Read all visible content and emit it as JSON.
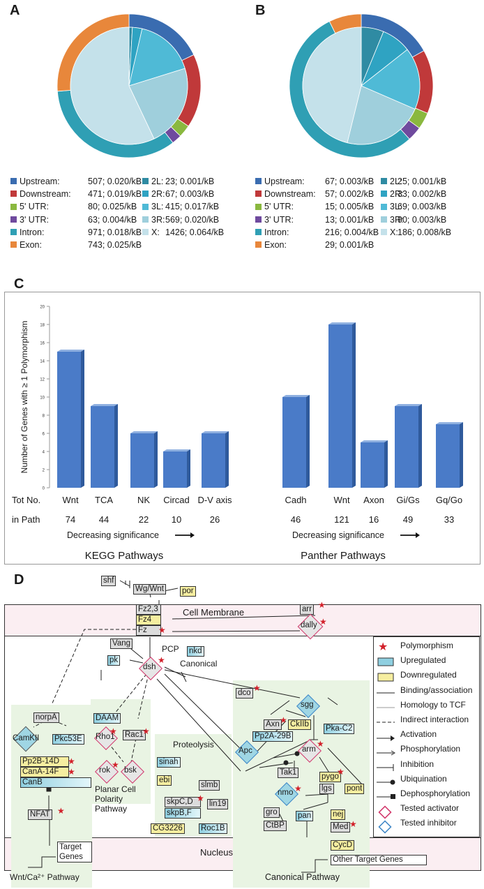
{
  "panels": {
    "a": "A",
    "b": "B",
    "c": "C",
    "d": "D"
  },
  "colors": {
    "Upstream": "#3a6cb0",
    "Downstream": "#c0393a",
    "5' UTR": "#8ab83f",
    "3' UTR": "#6f4a9e",
    "Intron": "#2f9fb4",
    "Exon": "#e8873b",
    "2L": "#2f8ba3",
    "2R": "#2fa3c2",
    "3L": "#4fbad6",
    "3R": "#9fcfdc",
    "X": "#c4e1ea",
    "bar": "#4a7bc8",
    "bar_dark": "#2f5a9c"
  },
  "chart_data": [
    {
      "type": "pie",
      "panel": "A",
      "outer_ring": [
        {
          "name": "Upstream",
          "count": 507,
          "density": "0.020/kB"
        },
        {
          "name": "Downstream",
          "count": 471,
          "density": "0.019/kB"
        },
        {
          "name": "5' UTR",
          "count": 80,
          "density": "0.025/kB"
        },
        {
          "name": "3' UTR",
          "count": 63,
          "density": "0.004/kB"
        },
        {
          "name": "Intron",
          "count": 971,
          "density": "0.018/kB"
        },
        {
          "name": "Exon",
          "count": 743,
          "density": "0.025/kB"
        }
      ],
      "inner_pie": [
        {
          "name": "2L",
          "count": 23,
          "density": "0.001/kB"
        },
        {
          "name": "2R",
          "count": 67,
          "density": "0.003/kB"
        },
        {
          "name": "3L",
          "count": 415,
          "density": "0.017/kB"
        },
        {
          "name": "3R",
          "count": 569,
          "density": "0.020/kB"
        },
        {
          "name": "X",
          "count": 1426,
          "density": "0.064/kB"
        }
      ],
      "legend_left": [
        {
          "name": "Upstream",
          "label": "Upstream:",
          "value": "507; 0.020/kB"
        },
        {
          "name": "Downstream",
          "label": "Downstream:",
          "value": "471; 0.019/kB"
        },
        {
          "name": "5' UTR",
          "label": "5' UTR:",
          "value": "80; 0.025/kB"
        },
        {
          "name": "3' UTR",
          "label": "3' UTR:",
          "value": "63; 0.004/kB"
        },
        {
          "name": "Intron",
          "label": "Intron:",
          "value": "971; 0.018/kB"
        },
        {
          "name": "Exon",
          "label": "Exon:",
          "value": "743; 0.025/kB"
        }
      ],
      "legend_right": [
        {
          "name": "2L",
          "label": "2L:",
          "value": "23; 0.001/kB"
        },
        {
          "name": "2R",
          "label": "2R:",
          "value": "67; 0.003/kB"
        },
        {
          "name": "3L",
          "label": "3L:",
          "value": "415; 0.017/kB"
        },
        {
          "name": "3R",
          "label": "3R:",
          "value": "569; 0.020/kB"
        },
        {
          "name": "X",
          "label": "X:",
          "value": "1426; 0.064/kB"
        }
      ]
    },
    {
      "type": "pie",
      "panel": "B",
      "outer_ring": [
        {
          "name": "Upstream",
          "count": 67,
          "density": "0.003/kB"
        },
        {
          "name": "Downstream",
          "count": 57,
          "density": "0.002/kB"
        },
        {
          "name": "5' UTR",
          "count": 15,
          "density": "0.005/kB"
        },
        {
          "name": "3' UTR",
          "count": 13,
          "density": "0.001/kB"
        },
        {
          "name": "Intron",
          "count": 216,
          "density": "0.004/kB"
        },
        {
          "name": "Exon",
          "count": 29,
          "density": "0.001/kB"
        }
      ],
      "inner_pie": [
        {
          "name": "2L",
          "count": 25,
          "density": "0.001/kB"
        },
        {
          "name": "2R",
          "count": 33,
          "density": "0.002/kB"
        },
        {
          "name": "3L",
          "count": 69,
          "density": "0.003/kB"
        },
        {
          "name": "3R",
          "count": 90,
          "density": "0.003/kB"
        },
        {
          "name": "X",
          "count": 186,
          "density": "0.008/kB"
        }
      ],
      "legend_left": [
        {
          "name": "Upstream",
          "label": "Upstream:",
          "value": "67; 0.003/kB"
        },
        {
          "name": "Downstream",
          "label": "Downstream:",
          "value": "57; 0.002/kB"
        },
        {
          "name": "5' UTR",
          "label": "5' UTR:",
          "value": "15; 0.005/kB"
        },
        {
          "name": "3' UTR",
          "label": "3' UTR:",
          "value": "13; 0.001/kB"
        },
        {
          "name": "Intron",
          "label": "Intron:",
          "value": "216; 0.004/kB"
        },
        {
          "name": "Exon",
          "label": "Exon:",
          "value": "29; 0.001/kB"
        }
      ],
      "legend_right": [
        {
          "name": "2L",
          "label": "2L:",
          "value": "25; 0.001/kB"
        },
        {
          "name": "2R",
          "label": "2R:",
          "value": "33; 0.002/kB"
        },
        {
          "name": "3L",
          "label": "3L:",
          "value": "69; 0.003/kB"
        },
        {
          "name": "3R",
          "label": "3R:",
          "value": "90; 0.003/kB"
        },
        {
          "name": "X",
          "label": "X:",
          "value": "186; 0.008/kB"
        }
      ]
    },
    {
      "type": "bar",
      "panel": "C",
      "ylabel": "Number of Genes with ≥ 1 Polymorphism",
      "ylim": [
        0,
        20
      ],
      "yticks": [
        0,
        2,
        4,
        6,
        8,
        10,
        12,
        14,
        16,
        18,
        20
      ],
      "groups": [
        {
          "title": "KEGG Pathways",
          "direction_label": "Decreasing significance",
          "categories": [
            "Wnt",
            "TCA",
            "NK",
            "Circad",
            "D-V axis"
          ],
          "values": [
            15,
            9,
            6,
            4,
            6
          ],
          "tot_in_path": [
            "74",
            "44",
            "22",
            "10",
            "26"
          ]
        },
        {
          "title": "Panther Pathways",
          "direction_label": "Decreasing significance",
          "categories": [
            "Cadh",
            "Wnt",
            "Axon",
            "Gi/Gs",
            "Gq/Go"
          ],
          "values": [
            10,
            18,
            5,
            9,
            7
          ],
          "tot_in_path": [
            "46",
            "121",
            "16",
            "49",
            "33"
          ]
        }
      ],
      "row_label_1": "Tot No.",
      "row_label_2": "in Path"
    }
  ],
  "pathway": {
    "compartments": {
      "membrane": "Cell Membrane",
      "nucleus": "Nucleus"
    },
    "labels": {
      "pcp": "PCP",
      "canonical": "Canonical",
      "proteolysis": "Proteolysis",
      "planar": "Planar Cell Polarity Pathway",
      "wnt_ca": "Wnt/Ca²⁺ Pathway",
      "canonical_pathway": "Canonical Pathway",
      "target_genes": "Target Genes",
      "other_targets": "Other Target Genes"
    },
    "genes": {
      "shf": "shf",
      "wg": "Wg/Wnt",
      "por": "por",
      "fz23": "Fz2,3",
      "fz4": "Fz4",
      "fz": "Fz",
      "arr": "arr",
      "dally": "dally",
      "vang": "Vang",
      "pk": "pk",
      "dsh": "dsh",
      "nkd": "nkd",
      "dco": "dco",
      "sgg": "sgg",
      "axn": "Axn",
      "ckiib": "CkIIb",
      "pkac2": "Pka-C2",
      "pp2a": "Pp2A-29B",
      "apc": "Apc",
      "arm": "arm",
      "norpa": "norpA",
      "camkii": "CamKII",
      "pkc53e": "Pkc53E",
      "pp2b": "Pp2B-14D",
      "cana": "CanA-14F",
      "canb": "CanB",
      "nfat": "NFAT",
      "daam": "DAAM",
      "rho1": "Rho1",
      "rac1": "Rac1",
      "rok": "rok",
      "bsk": "bsk",
      "sinah": "sinah",
      "ebi": "ebi",
      "slmb": "slmb",
      "skpcd": "skpC,D",
      "skpbf": "skpB,F",
      "lin19": "lin19",
      "cg3226": "CG3226",
      "roc1b": "Roc1B",
      "tak1": "Tak1",
      "nmo": "nmo",
      "pygo": "pygo",
      "lgs": "lgs",
      "pont": "pont",
      "gro": "gro",
      "ctbp": "CtBP",
      "pan": "pan",
      "nej": "nej",
      "med": "Med",
      "cycd": "CycD"
    },
    "legend": [
      {
        "key": "polymorphism",
        "label": "Polymorphism"
      },
      {
        "key": "upregulated",
        "label": "Upregulated"
      },
      {
        "key": "downregulated",
        "label": "Downregulated"
      },
      {
        "key": "binding",
        "label": "Binding/association"
      },
      {
        "key": "homology",
        "label": "Homology to TCF"
      },
      {
        "key": "indirect",
        "label": "Indirect interaction"
      },
      {
        "key": "activation",
        "label": "Activation"
      },
      {
        "key": "phosphorylation",
        "label": "Phosphorylation"
      },
      {
        "key": "inhibition",
        "label": "Inhibition"
      },
      {
        "key": "ubiquination",
        "label": "Ubiquination"
      },
      {
        "key": "dephosphorylation",
        "label": "Dephosphorylation"
      },
      {
        "key": "tested_activator",
        "label": "Tested activator"
      },
      {
        "key": "tested_inhibitor",
        "label": "Tested inhibitor"
      }
    ]
  }
}
